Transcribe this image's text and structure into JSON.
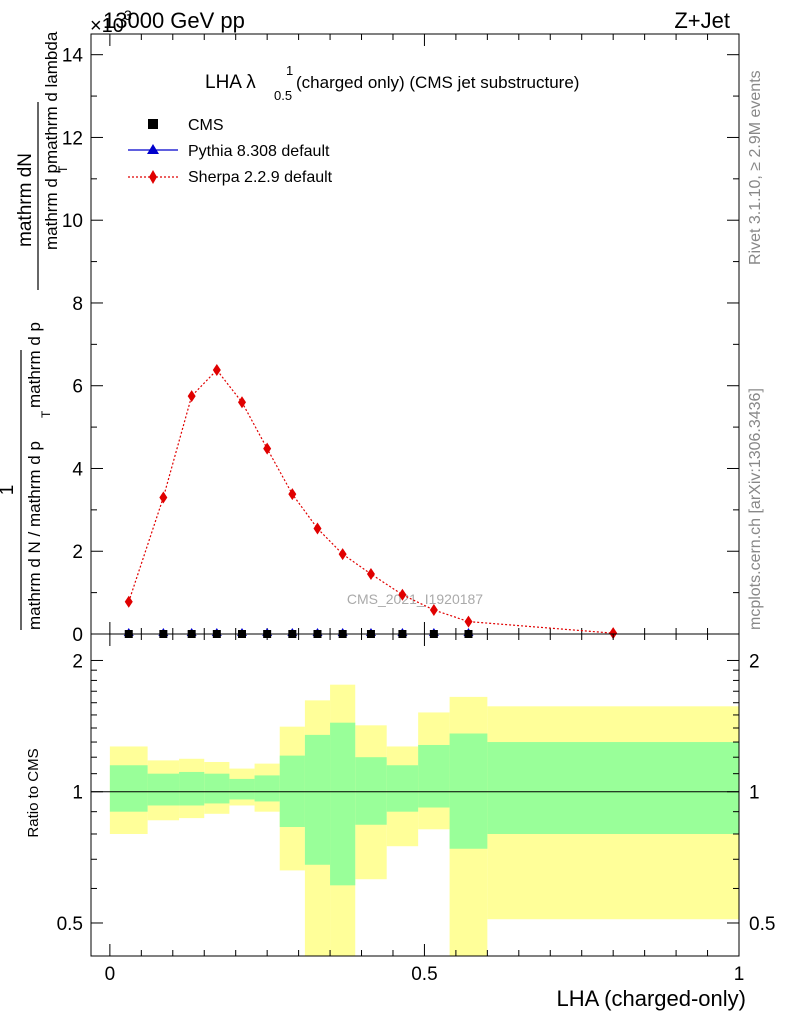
{
  "header": {
    "left": "13000 GeV pp",
    "right": "Z+Jet",
    "exponent": "×10",
    "exponent_power": "3"
  },
  "side_text": {
    "rivet": "Rivet 3.1.10, ≥ 2.9M events",
    "mcplots": "mcplots.cern.ch [arXiv:1306.3436]"
  },
  "watermark": "CMS_2021_I1920187",
  "main_title": {
    "text": "LHA λ",
    "sup": "1",
    "sub": "0.5",
    "rest": " (charged only) (CMS jet substructure)"
  },
  "legend": [
    {
      "label": "CMS",
      "color": "#000000",
      "marker": "square"
    },
    {
      "label": "Pythia 8.308 default",
      "color": "#0000cc",
      "marker": "triangle"
    },
    {
      "label": "Sherpa 2.2.9 default",
      "color": "#e00000",
      "marker": "diamond"
    }
  ],
  "ylabel_main": {
    "numer": "mathrm dN",
    "denom_top": "mathrm d p",
    "denom_top_sub": "T",
    "denom_top_rest": " mathrm d lambda",
    "prefix_numer": "1",
    "prefix_denom": "mathrm d N / mathrm d p",
    "prefix_denom_sub": "T",
    "prefix_denom_rest": "mathrm d p"
  },
  "ylabel_main_full": "1 / (mathrm d N / mathrm d pT mathrm d pT) · mathrm dN / (mathrm d pT mathrm d lambda)",
  "ylabel_ratio": "Ratio to CMS",
  "xlabel": "LHA (charged-only)",
  "chart_data": [
    {
      "type": "line",
      "panel": "main",
      "title": "LHA λ^1_0.5 (charged only) (CMS jet substructure)",
      "xlabel": "LHA (charged-only)",
      "ylabel": "1/(mathrm d N / mathrm d pT mathrm d pT) mathrm dN/(mathrm d pT mathrm d lambda)",
      "y_scale_factor": 1000,
      "xlim": [
        -0.03,
        1.0
      ],
      "ylim": [
        0,
        14.5
      ],
      "x_ticks": [
        0,
        0.5,
        1
      ],
      "y_ticks": [
        0,
        2,
        4,
        6,
        8,
        10,
        12,
        14
      ],
      "series": [
        {
          "name": "CMS",
          "color": "#000000",
          "marker": "square",
          "x": [
            0.03,
            0.085,
            0.13,
            0.17,
            0.21,
            0.25,
            0.29,
            0.33,
            0.37,
            0.415,
            0.465,
            0.515,
            0.57
          ],
          "y": [
            0,
            0,
            0,
            0,
            0,
            0,
            0,
            0,
            0,
            0,
            0,
            0,
            0
          ]
        },
        {
          "name": "Pythia 8.308 default",
          "color": "#0000cc",
          "marker": "triangle",
          "x": [
            0.03,
            0.085,
            0.13,
            0.17,
            0.21,
            0.25,
            0.29,
            0.33,
            0.37,
            0.415,
            0.465,
            0.515,
            0.57
          ],
          "y": [
            0,
            0,
            0,
            0,
            0,
            0,
            0,
            0,
            0,
            0,
            0,
            0,
            0
          ]
        },
        {
          "name": "Sherpa 2.2.9 default",
          "color": "#e00000",
          "marker": "diamond",
          "x": [
            0.03,
            0.085,
            0.13,
            0.17,
            0.21,
            0.25,
            0.29,
            0.33,
            0.37,
            0.415,
            0.465,
            0.515,
            0.57,
            0.8
          ],
          "y": [
            0.78,
            3.3,
            5.75,
            6.38,
            5.6,
            4.48,
            3.38,
            2.55,
            1.93,
            1.45,
            0.95,
            0.58,
            0.3,
            0.02
          ]
        }
      ]
    },
    {
      "type": "area",
      "panel": "ratio",
      "ylabel": "Ratio to CMS",
      "xlim": [
        -0.03,
        1.0
      ],
      "ylim": [
        0.42,
        2.3
      ],
      "y_scale": "log",
      "y_ticks": [
        0.5,
        1,
        2
      ],
      "x_ticks": [
        0,
        0.5,
        1
      ],
      "reference_line": 1,
      "bins": [
        {
          "x0": 0.0,
          "x1": 0.06,
          "yellow": [
            0.8,
            1.27
          ],
          "green": [
            0.9,
            1.15
          ]
        },
        {
          "x0": 0.06,
          "x1": 0.11,
          "yellow": [
            0.86,
            1.18
          ],
          "green": [
            0.93,
            1.1
          ]
        },
        {
          "x0": 0.11,
          "x1": 0.15,
          "yellow": [
            0.87,
            1.19
          ],
          "green": [
            0.93,
            1.11
          ]
        },
        {
          "x0": 0.15,
          "x1": 0.19,
          "yellow": [
            0.89,
            1.17
          ],
          "green": [
            0.94,
            1.1
          ]
        },
        {
          "x0": 0.19,
          "x1": 0.23,
          "yellow": [
            0.93,
            1.13
          ],
          "green": [
            0.96,
            1.07
          ]
        },
        {
          "x0": 0.23,
          "x1": 0.27,
          "yellow": [
            0.9,
            1.16
          ],
          "green": [
            0.95,
            1.09
          ]
        },
        {
          "x0": 0.27,
          "x1": 0.31,
          "yellow": [
            0.66,
            1.41
          ],
          "green": [
            0.83,
            1.21
          ]
        },
        {
          "x0": 0.31,
          "x1": 0.35,
          "yellow": [
            0.3,
            1.62
          ],
          "green": [
            0.68,
            1.35
          ]
        },
        {
          "x0": 0.35,
          "x1": 0.39,
          "yellow": [
            0.3,
            1.76
          ],
          "green": [
            0.61,
            1.44
          ]
        },
        {
          "x0": 0.39,
          "x1": 0.44,
          "yellow": [
            0.63,
            1.42
          ],
          "green": [
            0.84,
            1.2
          ]
        },
        {
          "x0": 0.44,
          "x1": 0.49,
          "yellow": [
            0.75,
            1.27
          ],
          "green": [
            0.9,
            1.15
          ]
        },
        {
          "x0": 0.49,
          "x1": 0.54,
          "yellow": [
            0.82,
            1.52
          ],
          "green": [
            0.92,
            1.28
          ]
        },
        {
          "x0": 0.54,
          "x1": 0.6,
          "yellow": [
            0.3,
            1.65
          ],
          "green": [
            0.74,
            1.36
          ]
        },
        {
          "x0": 0.6,
          "x1": 1.0,
          "yellow": [
            0.51,
            1.57
          ],
          "green": [
            0.8,
            1.3
          ]
        }
      ]
    }
  ]
}
